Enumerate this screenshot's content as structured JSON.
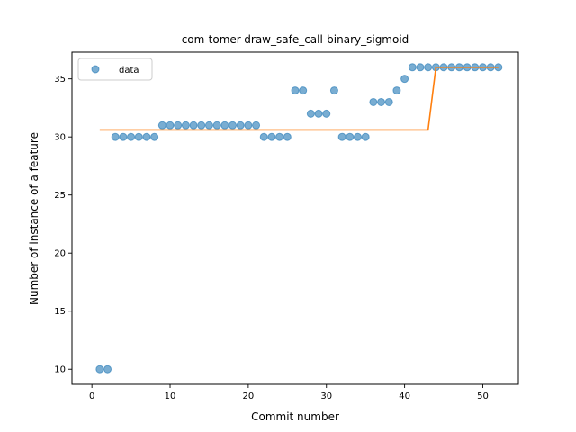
{
  "chart_data": {
    "type": "scatter",
    "title": "com-tomer-draw_safe_call-binary_sigmoid",
    "xlabel": "Commit number",
    "ylabel": "Number of instance of a feature",
    "xlim": [
      -2.55,
      54.55
    ],
    "ylim": [
      8.7,
      37.3
    ],
    "xticks": [
      0,
      10,
      20,
      30,
      40,
      50
    ],
    "yticks": [
      10,
      15,
      20,
      25,
      30,
      35
    ],
    "grid": false,
    "legend": {
      "entries": [
        "data"
      ],
      "placement": "top-left"
    },
    "colors": {
      "data": "#1f77b4",
      "fit": "#ff7f0e"
    },
    "series": [
      {
        "name": "data",
        "kind": "scatter",
        "x": [
          1,
          2,
          3,
          4,
          5,
          6,
          7,
          8,
          9,
          10,
          11,
          12,
          13,
          14,
          15,
          16,
          17,
          18,
          19,
          20,
          21,
          22,
          23,
          24,
          25,
          26,
          27,
          28,
          29,
          30,
          31,
          32,
          33,
          34,
          35,
          36,
          37,
          38,
          39,
          40,
          41,
          42,
          43,
          44,
          45,
          46,
          47,
          48,
          49,
          50,
          51,
          52
        ],
        "y": [
          10,
          10,
          30,
          30,
          30,
          30,
          30,
          30,
          31,
          31,
          31,
          31,
          31,
          31,
          31,
          31,
          31,
          31,
          31,
          31,
          31,
          30,
          30,
          30,
          30,
          34,
          34,
          32,
          32,
          32,
          34,
          30,
          30,
          30,
          30,
          33,
          33,
          33,
          34,
          35,
          36,
          36,
          36,
          36,
          36,
          36,
          36,
          36,
          36,
          36,
          36,
          36
        ]
      },
      {
        "kind": "line",
        "x": [
          1,
          43,
          44,
          52
        ],
        "y": [
          30.6,
          30.6,
          36,
          36
        ]
      }
    ]
  }
}
